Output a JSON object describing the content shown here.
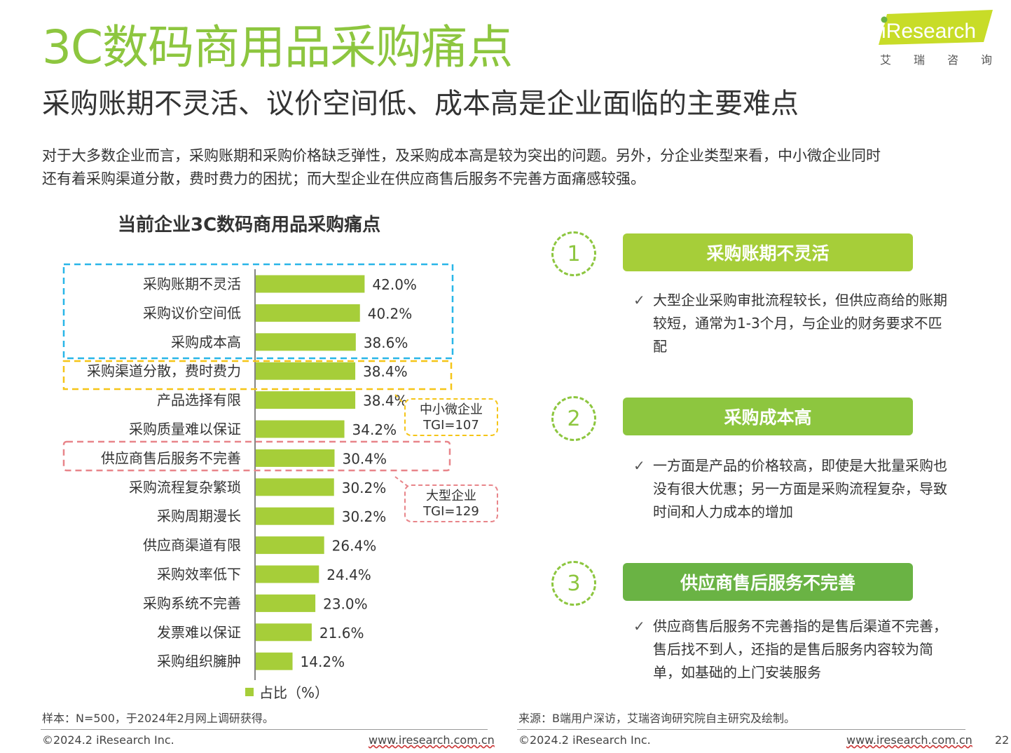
{
  "header": {
    "title": "3C数码商用品采购痛点",
    "subtitle": "采购账期不灵活、议价空间低、成本高是企业面临的主要难点",
    "description": [
      "对于大多数企业而言，采购账期和采购价格缺乏弹性，及采购成本高是较为突出的问题。另外，分企业类型来看，中小微企业同时",
      "还有着采购渠道分散，费时费力的困扰；而大型企业在供应商售后服务不完善方面痛感较强。"
    ]
  },
  "logo": {
    "brand": "iResearch",
    "sub": [
      "艾",
      "瑞",
      "咨",
      "询"
    ]
  },
  "chart_data": {
    "type": "bar",
    "orientation": "horizontal",
    "title": "当前企业3C数码商用品采购痛点",
    "categories": [
      "采购账期不灵活",
      "采购议价空间低",
      "采购成本高",
      "采购渠道分散，费时费力",
      "产品选择有限",
      "采购质量难以保证",
      "供应商售后服务不完善",
      "采购流程复杂繁琐",
      "采购周期漫长",
      "供应商渠道有限",
      "采购效率低下",
      "采购系统不完善",
      "发票难以保证",
      "采购组织臃肿"
    ],
    "values": [
      42.0,
      40.2,
      38.6,
      38.4,
      38.4,
      34.2,
      30.4,
      30.2,
      30.2,
      26.4,
      24.4,
      23.0,
      21.6,
      14.2
    ],
    "value_labels": [
      "42.0%",
      "40.2%",
      "38.6%",
      "38.4%",
      "38.4%",
      "34.2%",
      "30.4%",
      "30.2%",
      "30.2%",
      "26.4%",
      "24.4%",
      "23.0%",
      "21.6%",
      "14.2%"
    ],
    "series": [
      {
        "name": "占比（%）",
        "values": [
          42.0,
          40.2,
          38.6,
          38.4,
          38.4,
          34.2,
          30.4,
          30.2,
          30.2,
          26.4,
          24.4,
          23.0,
          21.6,
          14.2
        ]
      }
    ],
    "xlim": [
      0,
      100
    ],
    "bar_color": "#A6CE39",
    "legend": "bottom"
  },
  "callouts": {
    "sme": {
      "line1": "中小微企业",
      "line2": "TGI=107",
      "color": "#F5C518"
    },
    "large": {
      "line1": "大型企业",
      "line2": "TGI=129",
      "color": "#E8858A"
    },
    "top3_color": "#29B6E8"
  },
  "points": [
    {
      "number": "1",
      "title": "采购账期不灵活",
      "color": "#A6CE39",
      "text": "大型企业采购审批流程较长，但供应商给的账期较短，通常为1-3个月，与企业的财务要求不匹配"
    },
    {
      "number": "2",
      "title": "采购成本高",
      "color": "#8DC63F",
      "text": "一方面是产品的价格较高，即使是大批量采购也没有很大优惠；另一方面是采购流程复杂，导致时间和人力成本的增加"
    },
    {
      "number": "3",
      "title": "供应商售后服务不完善",
      "color": "#6AB344",
      "text": "供应商售后服务不完善指的是售后渠道不完善，售后找不到人，还指的是售后服务内容较为简单，如基础的上门安装服务"
    }
  ],
  "check_mark": "✓",
  "notes": {
    "sample": "样本：N=500，于2024年2月网上调研获得。",
    "source": "来源：B端用户深访，艾瑞咨询研究院自主研究及绘制。"
  },
  "footer": {
    "copyright": "©2024.2 iResearch Inc.",
    "url": "www.iresearch.com.cn",
    "page": "22"
  }
}
